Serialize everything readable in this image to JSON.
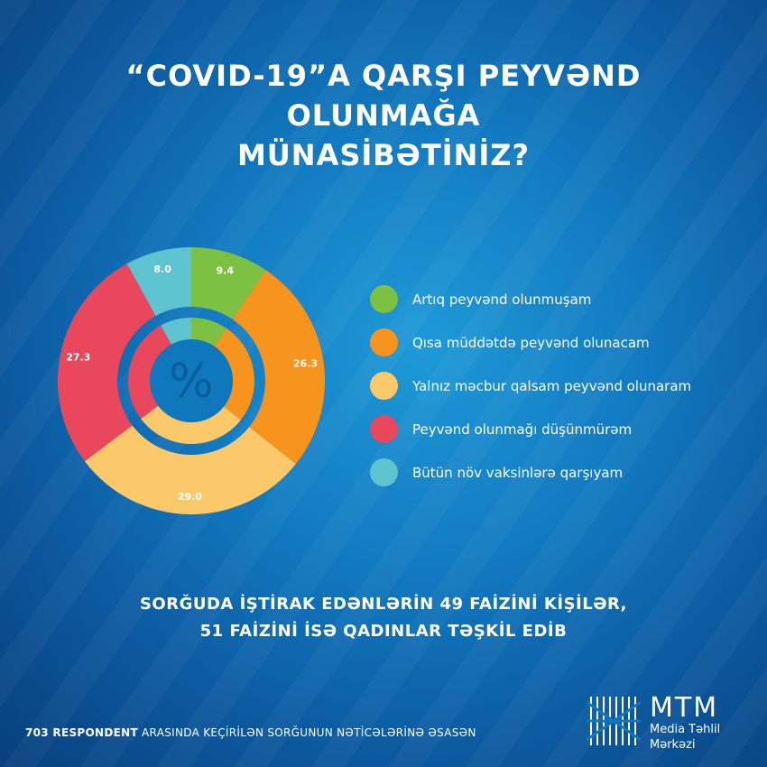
{
  "title": {
    "line1": "“COVID-19”A QARŞI PEYVƏND OLUNMAĞA",
    "line2": "MÜNASİBƏTİNİZ?"
  },
  "center_symbol": "%",
  "chart_data": {
    "type": "donut",
    "slices": [
      {
        "label": "Artıq peyvənd olunmuşam",
        "value": 9.4,
        "value_label": "9.4",
        "color": "#7dc142"
      },
      {
        "label": "Qısa müddətdə peyvənd olunacam",
        "value": 26.3,
        "value_label": "26.3",
        "color": "#f7941d"
      },
      {
        "label": "Yalnız məcbur qalsam peyvənd olunaram",
        "value": 29.0,
        "value_label": "29.0",
        "color": "#fbc969"
      },
      {
        "label": "Peyvənd olunmağı düşünmürəm",
        "value": 27.3,
        "value_label": "27.3",
        "color": "#e9485c"
      },
      {
        "label": "Bütün növ vaksinlərə qarşıyam",
        "value": 8.0,
        "value_label": "8.0",
        "color": "#5ec4cf"
      }
    ]
  },
  "note": {
    "line1": "SORĞUDA İŞTİRAK EDƏNLƏRİN 49 FAİZİNİ KİŞİLƏR,",
    "line2": "51 FAİZİNİ İSƏ QADINLAR TƏŞKİL EDİB"
  },
  "footer": {
    "bold": "703 RESPONDENT",
    "rest": " ARASINDA KEÇİRİLƏN SORĞUNUN NƏTİCƏLƏRİNƏ ƏSASƏN"
  },
  "logo": {
    "name": "MTM",
    "sub1": "Media Təhlil",
    "sub2": "Mərkəzi"
  }
}
